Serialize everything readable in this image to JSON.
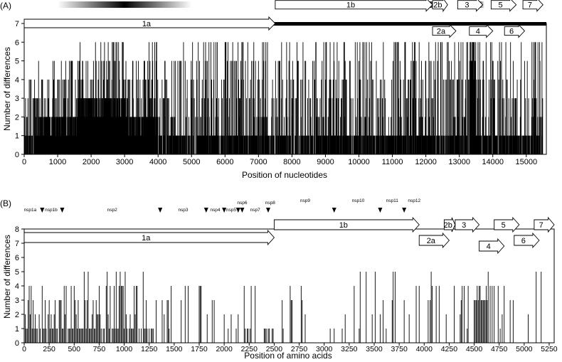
{
  "figure": {
    "panels": [
      {
        "id": "A",
        "label": "(A)"
      },
      {
        "id": "B",
        "label": "(B)"
      }
    ]
  },
  "chart_data": [
    {
      "type": "bar",
      "panel_label": "(A)",
      "xlabel": "Position of nucleotides",
      "ylabel": "Number of differences",
      "xlim": [
        0,
        15600
      ],
      "ylim": [
        0,
        7
      ],
      "xticks": [
        0,
        1000,
        2000,
        3000,
        4000,
        5000,
        6000,
        7000,
        8000,
        9000,
        10000,
        11000,
        12000,
        13000,
        14000,
        15000
      ],
      "xtick_labels": [
        "0",
        "1000",
        "2000",
        "3000",
        "4000",
        "5000",
        "6000",
        "7000",
        "8000",
        "9000",
        "10000",
        "11000",
        "12000",
        "13000",
        "14000",
        "15000"
      ],
      "yticks": [
        0,
        1,
        2,
        3,
        4,
        5,
        6,
        7
      ],
      "ytick_labels": [
        "0",
        "1",
        "2",
        "3",
        "4",
        "5",
        "6",
        "7"
      ],
      "grid": false,
      "genome_bar": {
        "start": 0,
        "end": 15600,
        "level": 7
      },
      "orfs": [
        {
          "label": "1a",
          "start": 0,
          "end": 7500,
          "level": 7,
          "dir": "right"
        },
        {
          "label": "1b",
          "start": 7500,
          "end": 12200,
          "level": 8,
          "dir": "right"
        },
        {
          "label": "2b",
          "start": 12200,
          "end": 12650,
          "level": 8,
          "dir": "right"
        },
        {
          "label": "2a",
          "start": 12200,
          "end": 12900,
          "level": 6.6,
          "dir": "right"
        },
        {
          "label": "3",
          "start": 12950,
          "end": 13700,
          "level": 8,
          "dir": "right"
        },
        {
          "label": "4",
          "start": 13300,
          "end": 14000,
          "level": 6.6,
          "dir": "right"
        },
        {
          "label": "5",
          "start": 13950,
          "end": 14700,
          "level": 8,
          "dir": "right"
        },
        {
          "label": "6",
          "start": 14350,
          "end": 14950,
          "level": 6.6,
          "dir": "right"
        },
        {
          "label": "7",
          "start": 14900,
          "end": 15500,
          "level": 8,
          "dir": "right"
        }
      ],
      "density_bands": [
        {
          "start": 1000,
          "end": 5000,
          "peak": 3000
        },
        {
          "start": 11850,
          "end": 12350,
          "peak": 12150
        },
        {
          "start": 13350,
          "end": 13750,
          "peak": 13550
        },
        {
          "start": 14000,
          "end": 14450,
          "peak": 14200
        }
      ],
      "series": [
        {
          "seed": 11,
          "step": 10,
          "profile": [
            {
              "start": 0,
              "end": 400,
              "base": 1,
              "high": 4,
              "p": 0.45
            },
            {
              "start": 400,
              "end": 1000,
              "base": 2,
              "high": 5,
              "p": 0.55
            },
            {
              "start": 1000,
              "end": 1600,
              "base": 2,
              "high": 5,
              "p": 0.6
            },
            {
              "start": 1600,
              "end": 3100,
              "base": 3,
              "high": 6,
              "p": 0.5
            },
            {
              "start": 3100,
              "end": 3600,
              "base": 2,
              "high": 5,
              "p": 0.55
            },
            {
              "start": 3600,
              "end": 4000,
              "base": 2,
              "high": 6,
              "p": 0.55
            },
            {
              "start": 4000,
              "end": 4600,
              "base": 1,
              "high": 5,
              "p": 0.5
            },
            {
              "start": 4600,
              "end": 6000,
              "base": 1,
              "high": 6,
              "p": 0.45
            },
            {
              "start": 6000,
              "end": 7500,
              "base": 1,
              "high": 6,
              "p": 0.5
            },
            {
              "start": 7500,
              "end": 9500,
              "base": 1,
              "high": 6,
              "p": 0.5
            },
            {
              "start": 9500,
              "end": 11500,
              "base": 1,
              "high": 6,
              "p": 0.5
            },
            {
              "start": 11500,
              "end": 12600,
              "base": 1,
              "high": 6,
              "p": 0.45
            },
            {
              "start": 12600,
              "end": 13300,
              "base": 1,
              "high": 6,
              "p": 0.5
            },
            {
              "start": 13300,
              "end": 13500,
              "base": 5,
              "high": 6,
              "p": 0.6
            },
            {
              "start": 13500,
              "end": 14200,
              "base": 1,
              "high": 6,
              "p": 0.5
            },
            {
              "start": 14200,
              "end": 15500,
              "base": 1,
              "high": 6,
              "p": 0.45
            }
          ]
        }
      ]
    },
    {
      "type": "bar",
      "panel_label": "(B)",
      "xlabel": "Position of amino acids",
      "ylabel": "Number of differences",
      "xlim": [
        0,
        5300
      ],
      "ylim": [
        0,
        8
      ],
      "xticks": [
        0,
        250,
        500,
        750,
        1000,
        1250,
        1500,
        1750,
        2000,
        2250,
        2500,
        2750,
        3000,
        3250,
        3500,
        3750,
        4000,
        4250,
        4500,
        4750,
        5000,
        5250
      ],
      "xtick_labels": [
        "0",
        "250",
        "500",
        "750",
        "1000",
        "1250",
        "1500",
        "1750",
        "2000",
        "2250",
        "2500",
        "2750",
        "3000",
        "3250",
        "3500",
        "3750",
        "4000",
        "4250",
        "4500",
        "4750",
        "5000",
        "5250"
      ],
      "yticks": [
        0,
        1,
        2,
        3,
        4,
        5,
        6,
        7,
        8
      ],
      "ytick_labels": [
        "0",
        "1",
        "2",
        "3",
        "4",
        "5",
        "6",
        "7",
        "8"
      ],
      "grid": false,
      "orfs": [
        {
          "label": "1a",
          "start": 0,
          "end": 2500,
          "level": 7.4,
          "dir": "right"
        },
        {
          "label": "1b",
          "start": 2500,
          "end": 3950,
          "level": 8.3,
          "dir": "right"
        },
        {
          "label": "2a",
          "start": 3950,
          "end": 4250,
          "level": 7.2,
          "dir": "right"
        },
        {
          "label": "2b",
          "start": 4200,
          "end": 4310,
          "level": 8.3,
          "dir": "right"
        },
        {
          "label": "3",
          "start": 4310,
          "end": 4550,
          "level": 8.3,
          "dir": "right"
        },
        {
          "label": "4",
          "start": 4550,
          "end": 4800,
          "level": 6.8,
          "dir": "right"
        },
        {
          "label": "5",
          "start": 4700,
          "end": 4950,
          "level": 8.3,
          "dir": "right"
        },
        {
          "label": "6",
          "start": 4900,
          "end": 5150,
          "level": 7.2,
          "dir": "right"
        },
        {
          "label": "7",
          "start": 5100,
          "end": 5300,
          "level": 8.3,
          "dir": "right"
        }
      ],
      "nsp_markers": [
        180,
        380,
        1360,
        1820,
        2000,
        2140,
        2180,
        2440,
        3100,
        3560,
        3800
      ],
      "nsp_labels": [
        {
          "label": "nsp1a",
          "x": 60,
          "row": 0
        },
        {
          "label": "nsp1b",
          "x": 270,
          "row": 0
        },
        {
          "label": "nsp2",
          "x": 880,
          "row": 0
        },
        {
          "label": "nsp3",
          "x": 1590,
          "row": 0
        },
        {
          "label": "nsp4",
          "x": 1910,
          "row": 0
        },
        {
          "label": "nsp5",
          "x": 2070,
          "row": 0
        },
        {
          "label": "nsp6",
          "x": 2180,
          "row": 1
        },
        {
          "label": "nsp7",
          "x": 2310,
          "row": 0
        },
        {
          "label": "nsp8",
          "x": 2460,
          "row": 1
        },
        {
          "label": "nsp9",
          "x": 2810,
          "row": 2
        },
        {
          "label": "nsp10",
          "x": 3340,
          "row": 2
        },
        {
          "label": "nsp11",
          "x": 3680,
          "row": 2
        },
        {
          "label": "nsp12",
          "x": 3900,
          "row": 2
        }
      ],
      "series": [
        {
          "seed": 23,
          "step": 10,
          "profile": [
            {
              "start": 0,
              "end": 400,
              "base": 1,
              "high": 4,
              "p": 0.45
            },
            {
              "start": 400,
              "end": 600,
              "base": 1,
              "high": 4,
              "p": 0.5
            },
            {
              "start": 600,
              "end": 1300,
              "base": 1,
              "high": 5,
              "p": 0.55
            },
            {
              "start": 1300,
              "end": 2400,
              "base": 0,
              "high": 4,
              "p": 0.3
            },
            {
              "start": 2400,
              "end": 2500,
              "base": 1,
              "high": 2,
              "p": 0.4
            },
            {
              "start": 2500,
              "end": 3000,
              "base": 0,
              "high": 4,
              "p": 0.25
            },
            {
              "start": 3000,
              "end": 3300,
              "base": 0,
              "high": 2,
              "p": 0.1
            },
            {
              "start": 3300,
              "end": 4500,
              "base": 0,
              "high": 5,
              "p": 0.3
            },
            {
              "start": 4500,
              "end": 4650,
              "base": 3,
              "high": 5,
              "p": 0.6
            },
            {
              "start": 4650,
              "end": 5200,
              "base": 0,
              "high": 5,
              "p": 0.35
            }
          ]
        }
      ]
    }
  ]
}
